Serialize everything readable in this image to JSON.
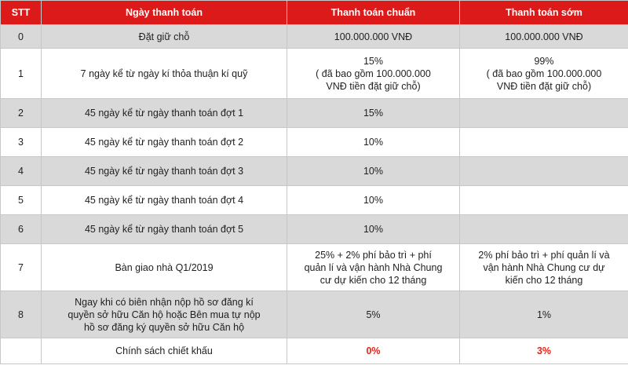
{
  "headers": {
    "stt": "STT",
    "payment_date": "Ngày thanh toán",
    "standard": "Thanh toán chuẩn",
    "early": "Thanh toán sớm"
  },
  "rows": [
    {
      "stt": "0",
      "date": "Đặt giữ chỗ",
      "standard": "100.000.000 VNĐ",
      "early": "100.000.000 VNĐ"
    },
    {
      "stt": "1",
      "date": "7 ngày kể từ ngày kí thỏa thuận kí quỹ",
      "standard": [
        "15%",
        "( đã bao gồm 100.000.000",
        "VNĐ tiền đặt giữ chỗ)"
      ],
      "early": [
        "99%",
        "( đã bao gồm 100.000.000",
        "VNĐ tiền đặt giữ chỗ)"
      ]
    },
    {
      "stt": "2",
      "date": "45 ngày kể từ ngày thanh toán đợt 1",
      "standard": "15%",
      "early": ""
    },
    {
      "stt": "3",
      "date": "45 ngày kể từ ngày thanh toán đợt 2",
      "standard": "10%",
      "early": ""
    },
    {
      "stt": "4",
      "date": "45 ngày kể từ ngày thanh toán đợt 3",
      "standard": "10%",
      "early": ""
    },
    {
      "stt": "5",
      "date": "45 ngày kể từ ngày thanh toán đợt 4",
      "standard": "10%",
      "early": ""
    },
    {
      "stt": "6",
      "date": "45 ngày kể từ ngày thanh toán đợt 5",
      "standard": "10%",
      "early": ""
    },
    {
      "stt": "7",
      "date": "Bàn giao nhà Q1/2019",
      "standard": [
        "25% + 2% phí bảo trì + phí",
        "quản lí và vận hành Nhà Chung",
        "cư dự kiến cho 12 tháng"
      ],
      "early": [
        "2% phí bảo trì + phí quản lí và",
        "vận hành Nhà Chung cư dự",
        "kiến cho 12 tháng"
      ]
    },
    {
      "stt": "8",
      "date": [
        "Ngay khi có biên nhận nộp hồ sơ đăng kí",
        "quyền sở hữu Căn hộ hoặc Bên mua tự nộp",
        "hồ sơ đăng ký quyền sở hữu Căn hộ"
      ],
      "standard": "5%",
      "early": "1%"
    },
    {
      "stt": "",
      "date": "Chính sách chiết khấu",
      "standard": "0%",
      "early": "3%"
    }
  ],
  "colors": {
    "header_bg": "#dd1a1a",
    "header_text": "#ffffff",
    "shaded_row": "#d9d9d9",
    "highlight_text": "#e3241b"
  }
}
